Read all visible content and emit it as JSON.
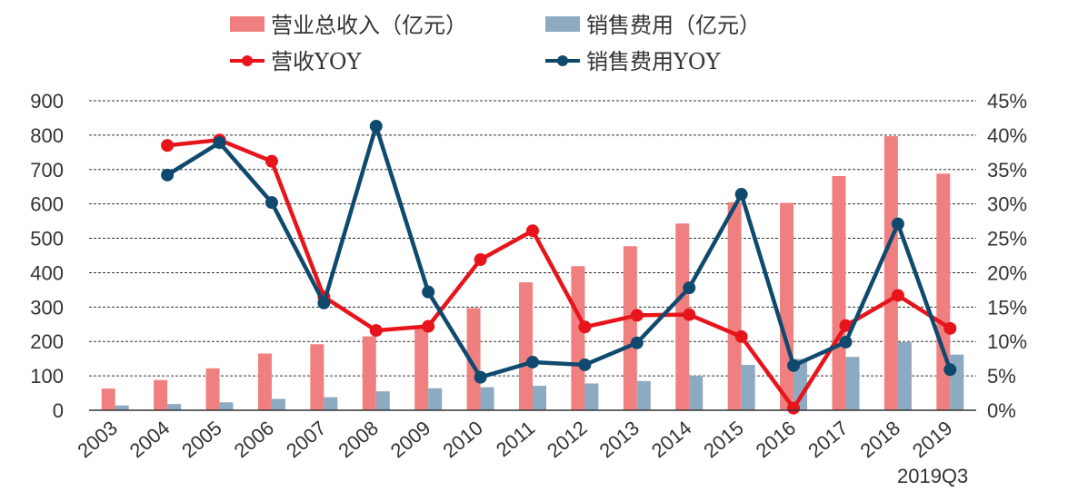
{
  "chart_data": {
    "type": "bar",
    "categories": [
      "2003",
      "2004",
      "2005",
      "2006",
      "2007",
      "2008",
      "2009",
      "2010",
      "2011",
      "2012",
      "2013",
      "2014",
      "2015",
      "2016",
      "2017",
      "2018",
      "2019Q3"
    ],
    "y_left": {
      "ticks": [
        "0",
        "100",
        "200",
        "300",
        "400",
        "500",
        "600",
        "700",
        "800",
        "900"
      ],
      "ylim": [
        0,
        900
      ]
    },
    "y_right": {
      "ticks": [
        "0%",
        "5%",
        "10%",
        "15%",
        "20%",
        "25%",
        "30%",
        "35%",
        "40%",
        "45%"
      ],
      "ylim": [
        0,
        45
      ]
    },
    "grid": "dashed horizontal",
    "legend_position": "top",
    "series": [
      {
        "name": "营业总收入（亿元）",
        "type": "bar",
        "axis": "left",
        "color": "#F08080",
        "values": [
          63,
          88,
          122,
          165,
          192,
          215,
          242,
          297,
          372,
          419,
          477,
          543,
          605,
          603,
          681,
          797,
          688
        ]
      },
      {
        "name": "销售费用（亿元）",
        "type": "bar",
        "axis": "left",
        "color": "#8CABC2",
        "values": [
          14,
          18,
          23,
          33,
          38,
          55,
          64,
          67,
          71,
          78,
          85,
          100,
          132,
          149,
          155,
          198,
          162
        ]
      },
      {
        "name": "营收YOY",
        "type": "line",
        "axis": "right",
        "color": "#E8141B",
        "values": [
          null,
          38.5,
          39.3,
          36.2,
          16.5,
          11.6,
          12.2,
          21.9,
          26.1,
          12.1,
          13.8,
          13.9,
          10.7,
          0.3,
          12.3,
          16.7,
          11.9
        ]
      },
      {
        "name": "销售费用YOY",
        "type": "line",
        "axis": "right",
        "color": "#0F4A6E",
        "values": [
          null,
          34.2,
          38.9,
          30.2,
          15.6,
          41.3,
          17.2,
          4.8,
          7.0,
          6.6,
          9.8,
          17.8,
          31.4,
          6.5,
          9.9,
          27.1,
          5.9
        ]
      }
    ]
  }
}
